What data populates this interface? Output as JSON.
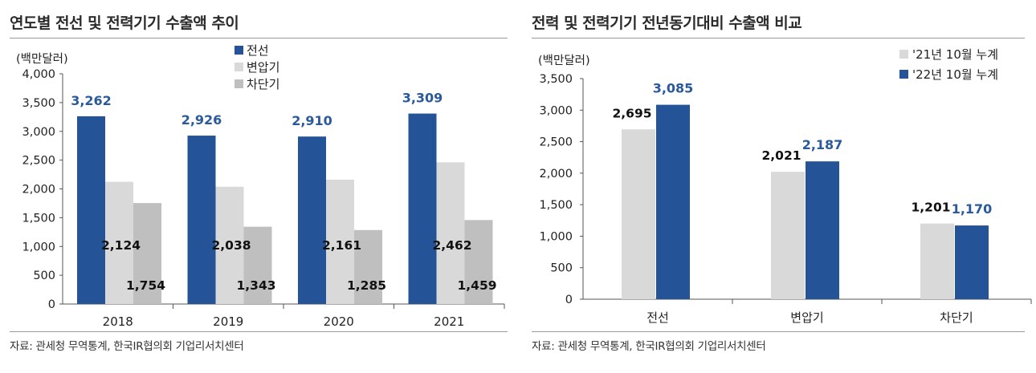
{
  "colors": {
    "primary": "#245497",
    "light": "#d9d9d9",
    "mid": "#bfbfbf"
  },
  "left": {
    "title": "연도별 전선 및 전력기기 수출액 추이",
    "source": "자료: 관세청 무역통계, 한국IR협의회 기업리서치센터"
  },
  "right": {
    "title": "전력 및 전력기기 전년동기대비 수출액 비교",
    "source": "자료: 관세청 무역통계, 한국IR협의회 기업리서치센터"
  },
  "chart_data": [
    {
      "type": "bar",
      "title": "연도별 전선 및 전력기기 수출액 추이",
      "ylabel": "(백만달러)",
      "ylim": [
        0,
        4000
      ],
      "yticks": [
        "0",
        "500",
        "1,000",
        "1,500",
        "2,000",
        "2,500",
        "3,000",
        "3,500",
        "4,000"
      ],
      "categories": [
        "2018",
        "2019",
        "2020",
        "2021"
      ],
      "legend_position": "top-center",
      "series": [
        {
          "name": "전선",
          "values": [
            3262,
            2926,
            2910,
            3309
          ],
          "labels": [
            "3,262",
            "2,926",
            "2,910",
            "3,309"
          ],
          "color": "#245497"
        },
        {
          "name": "변압기",
          "values": [
            2124,
            2038,
            2161,
            2462
          ],
          "labels": [
            "2,124",
            "2,038",
            "2,161",
            "2,462"
          ],
          "color": "#d9d9d9"
        },
        {
          "name": "차단기",
          "values": [
            1754,
            1343,
            1285,
            1459
          ],
          "labels": [
            "1,754",
            "1,343",
            "1,285",
            "1,459"
          ],
          "color": "#bfbfbf"
        }
      ]
    },
    {
      "type": "bar",
      "title": "전력 및 전력기기 전년동기대비 수출액 비교",
      "ylabel": "(백만달러)",
      "ylim": [
        0,
        3500
      ],
      "yticks": [
        "0",
        "500",
        "1,000",
        "1,500",
        "2,000",
        "2,500",
        "3,000",
        "3,500"
      ],
      "categories": [
        "전선",
        "변압기",
        "차단기"
      ],
      "legend_position": "top-right",
      "series": [
        {
          "name": "'21년 10월 누계",
          "values": [
            2695,
            2021,
            1201
          ],
          "labels": [
            "2,695",
            "2,021",
            "1,201"
          ],
          "color": "#d9d9d9"
        },
        {
          "name": "'22년 10월 누계",
          "values": [
            3085,
            2187,
            1170
          ],
          "labels": [
            "3,085",
            "2,187",
            "1,170"
          ],
          "color": "#245497"
        }
      ]
    }
  ]
}
